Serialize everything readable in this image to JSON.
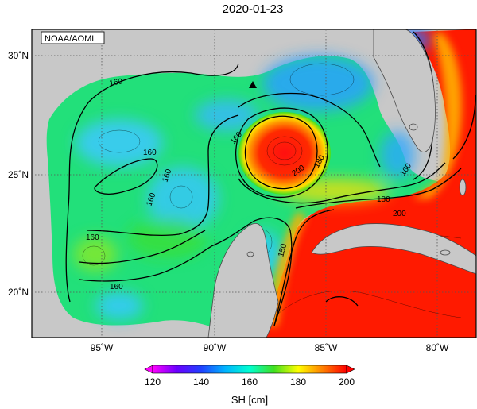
{
  "title": "2020-01-23",
  "credit": "NOAA/AOML",
  "variable_label": "SH [cm]",
  "colorbar": {
    "min": 120,
    "max": 200,
    "ticks": [
      "120",
      "140",
      "160",
      "180",
      "200"
    ],
    "stops": [
      {
        "value": 120,
        "color": "#ff00ff"
      },
      {
        "value": 130,
        "color": "#6a00ff"
      },
      {
        "value": 140,
        "color": "#2040ff"
      },
      {
        "value": 150,
        "color": "#00b4ff"
      },
      {
        "value": 160,
        "color": "#00ffd0"
      },
      {
        "value": 170,
        "color": "#40e020"
      },
      {
        "value": 180,
        "color": "#ffff00"
      },
      {
        "value": 190,
        "color": "#ff8000"
      },
      {
        "value": 200,
        "color": "#ff0000"
      }
    ]
  },
  "axes": {
    "lon_ticks": [
      "95˚W",
      "90˚W",
      "85˚W",
      "80˚W"
    ],
    "lat_ticks": [
      "30˚N",
      "25˚N",
      "20˚N"
    ]
  },
  "contour_labels": [
    "160",
    "160",
    "160",
    "160",
    "160",
    "160",
    "160",
    "160",
    "180",
    "180",
    "200",
    "200",
    "150"
  ],
  "colors": {
    "land": "#c8c8c8",
    "land_edge": "#4a4a4a",
    "grid": "#555555"
  },
  "marker": "triangle-marker"
}
